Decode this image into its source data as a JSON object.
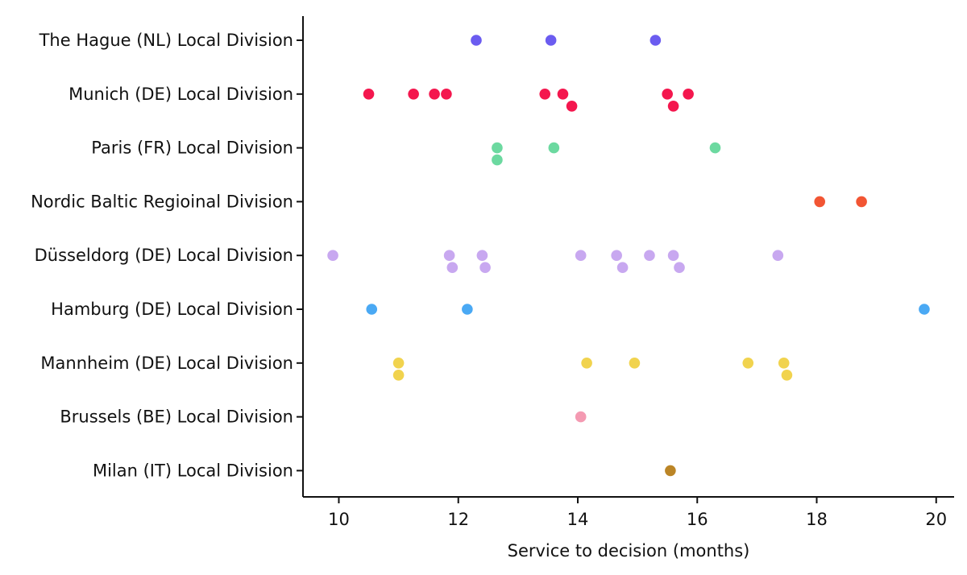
{
  "chart_data": {
    "type": "scatter",
    "subtype": "categorical-strip",
    "title": "",
    "xlabel": "Service to decision (months)",
    "ylabel": "",
    "xlim": [
      9.4,
      20.3
    ],
    "xticks": [
      10,
      12,
      14,
      16,
      18,
      20
    ],
    "grid": false,
    "categories": [
      "The Hague (NL) Local Division",
      "Munich (DE) Local Division",
      "Paris (FR) Local Division",
      "Nordic Baltic Regioinal Division",
      "Düsseldorg (DE) Local Division",
      "Hamburg (DE) Local Division",
      "Mannheim (DE) Local Division",
      "Brussels (BE) Local Division",
      "Milan (IT) Local Division"
    ],
    "series": [
      {
        "name": "The Hague (NL) Local Division",
        "color": "#6b5cf0",
        "points": [
          {
            "x": 12.3,
            "row": 0
          },
          {
            "x": 13.55,
            "row": 0
          },
          {
            "x": 15.3,
            "row": 0
          }
        ]
      },
      {
        "name": "Munich (DE) Local Division",
        "color": "#f4174e",
        "points": [
          {
            "x": 10.5,
            "row": 0
          },
          {
            "x": 11.25,
            "row": 0
          },
          {
            "x": 11.6,
            "row": 0
          },
          {
            "x": 11.8,
            "row": 0
          },
          {
            "x": 13.45,
            "row": 0
          },
          {
            "x": 13.75,
            "row": 0
          },
          {
            "x": 13.9,
            "row": 1
          },
          {
            "x": 15.5,
            "row": 0
          },
          {
            "x": 15.6,
            "row": 1
          },
          {
            "x": 15.85,
            "row": 0
          }
        ]
      },
      {
        "name": "Paris (FR) Local Division",
        "color": "#6cd9a0",
        "points": [
          {
            "x": 12.65,
            "row": 0
          },
          {
            "x": 12.65,
            "row": 1
          },
          {
            "x": 13.6,
            "row": 0
          },
          {
            "x": 16.3,
            "row": 0
          }
        ]
      },
      {
        "name": "Nordic Baltic Regioinal Division",
        "color": "#f25533",
        "points": [
          {
            "x": 18.05,
            "row": 0
          },
          {
            "x": 18.75,
            "row": 0
          }
        ]
      },
      {
        "name": "Düsseldorg (DE) Local Division",
        "color": "#c8a8f0",
        "points": [
          {
            "x": 9.9,
            "row": 0
          },
          {
            "x": 11.85,
            "row": 0
          },
          {
            "x": 11.9,
            "row": 1
          },
          {
            "x": 12.4,
            "row": 0
          },
          {
            "x": 12.45,
            "row": 1
          },
          {
            "x": 14.05,
            "row": 0
          },
          {
            "x": 14.65,
            "row": 0
          },
          {
            "x": 14.75,
            "row": 1
          },
          {
            "x": 15.2,
            "row": 0
          },
          {
            "x": 15.6,
            "row": 0
          },
          {
            "x": 15.7,
            "row": 1
          },
          {
            "x": 17.35,
            "row": 0
          }
        ]
      },
      {
        "name": "Hamburg (DE) Local Division",
        "color": "#4aa9f4",
        "points": [
          {
            "x": 10.55,
            "row": 0
          },
          {
            "x": 12.15,
            "row": 0
          },
          {
            "x": 19.8,
            "row": 0
          }
        ]
      },
      {
        "name": "Mannheim (DE) Local Division",
        "color": "#f1d34e",
        "points": [
          {
            "x": 11.0,
            "row": 0
          },
          {
            "x": 11.0,
            "row": 1
          },
          {
            "x": 14.15,
            "row": 0
          },
          {
            "x": 14.95,
            "row": 0
          },
          {
            "x": 16.85,
            "row": 0
          },
          {
            "x": 17.45,
            "row": 0
          },
          {
            "x": 17.5,
            "row": 1
          }
        ]
      },
      {
        "name": "Brussels (BE) Local Division",
        "color": "#f49ab2",
        "points": [
          {
            "x": 14.05,
            "row": 0
          }
        ]
      },
      {
        "name": "Milan (IT) Local Division",
        "color": "#bb8526",
        "points": [
          {
            "x": 15.55,
            "row": 0
          }
        ]
      }
    ]
  }
}
